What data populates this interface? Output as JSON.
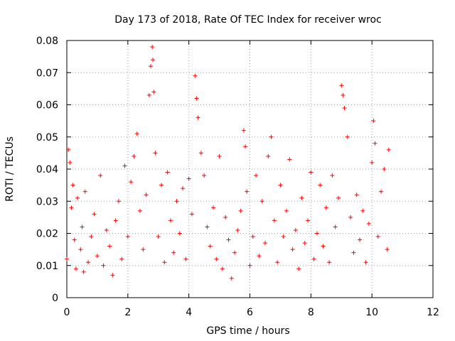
{
  "chart_data": {
    "type": "scatter",
    "title": "Day 173 of 2018, Rate Of TEC Index for receiver wroc",
    "xlabel": "GPS time / hours",
    "ylabel": "ROTI / TECUs",
    "xlim": [
      0,
      12
    ],
    "ylim": [
      0,
      0.08
    ],
    "xticks": [
      0,
      2,
      4,
      6,
      8,
      10,
      12
    ],
    "xtick_labels": [
      "0",
      "2",
      "4",
      "6",
      "8",
      "10",
      "12"
    ],
    "yticks": [
      0,
      0.01,
      0.02,
      0.03,
      0.04,
      0.05,
      0.06,
      0.07,
      0.08
    ],
    "ytick_labels": [
      "0",
      "0.01",
      "0.02",
      "0.03",
      "0.04",
      "0.05",
      "0.06",
      "0.07",
      "0.08"
    ],
    "grid": true,
    "marker": "plus",
    "color": "#ff0000",
    "series": [
      {
        "name": "ROTI (sampled)",
        "x": [
          0.0,
          0.05,
          0.1,
          0.15,
          0.2,
          0.25,
          0.3,
          0.35,
          0.45,
          0.5,
          0.55,
          0.6,
          0.7,
          0.8,
          0.9,
          1.0,
          1.1,
          1.2,
          1.3,
          1.4,
          1.5,
          1.6,
          1.7,
          1.8,
          1.9,
          2.0,
          2.1,
          2.2,
          2.3,
          2.4,
          2.5,
          2.6,
          2.7,
          2.75,
          2.8,
          2.82,
          2.85,
          2.9,
          3.0,
          3.1,
          3.2,
          3.3,
          3.4,
          3.5,
          3.6,
          3.7,
          3.8,
          3.9,
          4.0,
          4.1,
          4.2,
          4.25,
          4.3,
          4.4,
          4.5,
          4.6,
          4.7,
          4.8,
          4.9,
          5.0,
          5.1,
          5.2,
          5.3,
          5.4,
          5.5,
          5.6,
          5.7,
          5.8,
          5.85,
          5.9,
          6.0,
          6.1,
          6.2,
          6.3,
          6.4,
          6.5,
          6.6,
          6.7,
          6.8,
          6.9,
          7.0,
          7.1,
          7.2,
          7.3,
          7.4,
          7.5,
          7.6,
          7.7,
          7.8,
          7.9,
          8.0,
          8.1,
          8.2,
          8.3,
          8.4,
          8.5,
          8.6,
          8.7,
          8.8,
          8.9,
          9.0,
          9.05,
          9.1,
          9.2,
          9.3,
          9.4,
          9.5,
          9.6,
          9.7,
          9.8,
          9.9,
          10.0,
          10.05,
          10.1,
          10.2,
          10.3,
          10.4,
          10.5,
          10.55
        ],
        "y": [
          0.012,
          0.046,
          0.042,
          0.028,
          0.035,
          0.018,
          0.009,
          0.031,
          0.015,
          0.022,
          0.008,
          0.033,
          0.011,
          0.019,
          0.026,
          0.013,
          0.038,
          0.01,
          0.021,
          0.016,
          0.007,
          0.024,
          0.03,
          0.012,
          0.041,
          0.019,
          0.036,
          0.044,
          0.051,
          0.027,
          0.015,
          0.032,
          0.063,
          0.072,
          0.078,
          0.074,
          0.064,
          0.045,
          0.019,
          0.035,
          0.011,
          0.039,
          0.024,
          0.014,
          0.03,
          0.02,
          0.034,
          0.012,
          0.037,
          0.026,
          0.069,
          0.062,
          0.056,
          0.045,
          0.038,
          0.022,
          0.016,
          0.028,
          0.012,
          0.044,
          0.009,
          0.025,
          0.018,
          0.006,
          0.014,
          0.021,
          0.027,
          0.052,
          0.047,
          0.033,
          0.01,
          0.019,
          0.038,
          0.013,
          0.03,
          0.017,
          0.044,
          0.05,
          0.024,
          0.011,
          0.035,
          0.019,
          0.027,
          0.043,
          0.015,
          0.021,
          0.009,
          0.031,
          0.017,
          0.024,
          0.039,
          0.012,
          0.02,
          0.035,
          0.016,
          0.028,
          0.011,
          0.038,
          0.022,
          0.031,
          0.066,
          0.063,
          0.059,
          0.05,
          0.025,
          0.014,
          0.032,
          0.018,
          0.027,
          0.011,
          0.023,
          0.042,
          0.055,
          0.048,
          0.019,
          0.033,
          0.04,
          0.015,
          0.046
        ]
      }
    ]
  }
}
